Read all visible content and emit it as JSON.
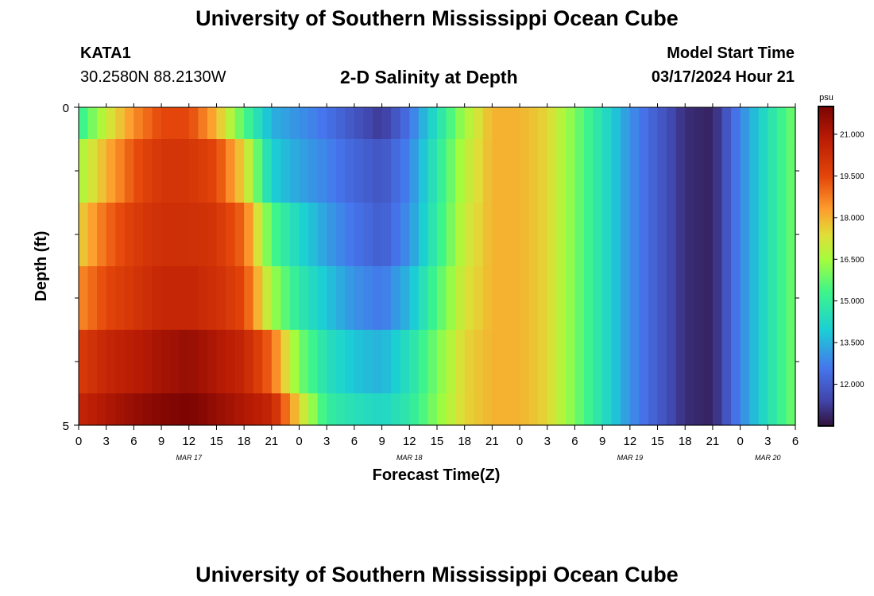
{
  "header": {
    "title": "University of Southern Mississippi Ocean Cube",
    "station_id": "KATA1",
    "coordinates": "30.2580N  88.2130W",
    "subtitle": "2-D Salinity at Depth",
    "model_start_label": "Model Start Time",
    "model_start_value": "03/17/2024 Hour 21"
  },
  "footer": {
    "title": "University of Southern Mississippi Ocean Cube"
  },
  "chart_data": {
    "type": "heatmap",
    "title": "2-D Salinity at Depth",
    "xlabel": "Forecast Time(Z)",
    "ylabel": "Depth (ft)",
    "x_range_hours": [
      0,
      78
    ],
    "x_start": "03/17 00Z",
    "x_ticks": [
      {
        "h": 0,
        "label": "0"
      },
      {
        "h": 3,
        "label": "3"
      },
      {
        "h": 6,
        "label": "6"
      },
      {
        "h": 9,
        "label": "9"
      },
      {
        "h": 12,
        "label": "12"
      },
      {
        "h": 15,
        "label": "15"
      },
      {
        "h": 18,
        "label": "18"
      },
      {
        "h": 21,
        "label": "21"
      },
      {
        "h": 24,
        "label": "0"
      },
      {
        "h": 27,
        "label": "3"
      },
      {
        "h": 30,
        "label": "6"
      },
      {
        "h": 33,
        "label": "9"
      },
      {
        "h": 36,
        "label": "12"
      },
      {
        "h": 39,
        "label": "15"
      },
      {
        "h": 42,
        "label": "18"
      },
      {
        "h": 45,
        "label": "21"
      },
      {
        "h": 48,
        "label": "0"
      },
      {
        "h": 51,
        "label": "3"
      },
      {
        "h": 54,
        "label": "6"
      },
      {
        "h": 57,
        "label": "9"
      },
      {
        "h": 60,
        "label": "12"
      },
      {
        "h": 63,
        "label": "15"
      },
      {
        "h": 66,
        "label": "18"
      },
      {
        "h": 69,
        "label": "21"
      },
      {
        "h": 72,
        "label": "0"
      },
      {
        "h": 75,
        "label": "3"
      },
      {
        "h": 78,
        "label": "6"
      }
    ],
    "date_labels": [
      {
        "h": 12,
        "label": "MAR 17"
      },
      {
        "h": 36,
        "label": "MAR 18"
      },
      {
        "h": 60,
        "label": "MAR 19"
      },
      {
        "h": 75,
        "label": "MAR 20"
      }
    ],
    "y_range_ft": [
      0,
      5
    ],
    "y_tick_labels": [
      {
        "ft": 0,
        "label": "0"
      },
      {
        "ft": 5,
        "label": "5"
      }
    ],
    "y_minor_ticks_ft": [
      1,
      2,
      3,
      4
    ],
    "depth_layers_ft": [
      0.25,
      1,
      2,
      3,
      4,
      4.75
    ],
    "depth_bounds_ft": [
      [
        0,
        0.5
      ],
      [
        0.5,
        1.5
      ],
      [
        1.5,
        2.5
      ],
      [
        2.5,
        3.5
      ],
      [
        3.5,
        4.5
      ],
      [
        4.5,
        5
      ]
    ],
    "time_hours": [
      0,
      3,
      6,
      9,
      12,
      15,
      18,
      21,
      24,
      27,
      30,
      33,
      36,
      39,
      42,
      45,
      48,
      51,
      54,
      57,
      60,
      63,
      66,
      69,
      72,
      75,
      78
    ],
    "salinity_psu": [
      [
        15.0,
        17.0,
        18.5,
        19.5,
        19.5,
        18.0,
        15.5,
        13.5,
        13.0,
        12.5,
        11.8,
        11.2,
        12.5,
        14.5,
        16.5,
        18.0,
        18.0,
        17.5,
        16.0,
        14.5,
        13.0,
        12.0,
        11.0,
        10.8,
        12.8,
        14.5,
        16.0
      ],
      [
        16.5,
        18.0,
        19.3,
        20.0,
        20.0,
        19.5,
        17.5,
        14.0,
        13.3,
        12.8,
        12.2,
        11.8,
        12.8,
        14.8,
        16.8,
        18.0,
        18.0,
        17.5,
        16.0,
        14.5,
        13.0,
        12.0,
        11.0,
        10.8,
        12.8,
        14.5,
        16.0
      ],
      [
        17.5,
        19.0,
        19.8,
        20.2,
        20.2,
        20.0,
        19.0,
        15.5,
        14.2,
        13.2,
        12.5,
        12.0,
        13.0,
        15.0,
        17.0,
        18.0,
        18.0,
        17.5,
        16.0,
        14.5,
        13.0,
        12.0,
        11.0,
        10.8,
        12.8,
        14.5,
        16.0
      ],
      [
        18.5,
        19.5,
        20.0,
        20.5,
        20.5,
        20.2,
        19.5,
        16.5,
        14.8,
        13.8,
        13.0,
        12.6,
        13.6,
        15.5,
        17.2,
        18.0,
        18.0,
        17.5,
        16.0,
        14.5,
        13.0,
        12.0,
        11.0,
        10.8,
        12.8,
        14.5,
        16.0
      ],
      [
        19.8,
        20.5,
        20.8,
        21.2,
        21.5,
        21.0,
        20.5,
        19.0,
        16.0,
        14.5,
        13.8,
        13.5,
        14.5,
        16.0,
        17.5,
        18.0,
        18.0,
        17.5,
        16.0,
        14.5,
        13.0,
        12.0,
        11.0,
        10.8,
        12.8,
        14.5,
        16.0
      ],
      [
        20.5,
        21.0,
        21.5,
        21.8,
        22.0,
        21.5,
        21.0,
        20.5,
        17.5,
        15.0,
        14.5,
        14.2,
        14.8,
        16.2,
        17.5,
        18.0,
        18.0,
        17.5,
        16.0,
        14.5,
        13.0,
        12.0,
        11.0,
        10.8,
        12.8,
        14.5,
        16.0
      ]
    ],
    "colorbar": {
      "unit": "psu",
      "range": [
        10.5,
        22.0
      ],
      "tick_values": [
        21.0,
        19.5,
        18.0,
        16.5,
        15.0,
        13.5,
        12.0
      ],
      "tick_labels": [
        "21.000",
        "19.500",
        "18.000",
        "16.500",
        "15.000",
        "13.500",
        "12.000"
      ],
      "colormap": "turbo"
    }
  }
}
